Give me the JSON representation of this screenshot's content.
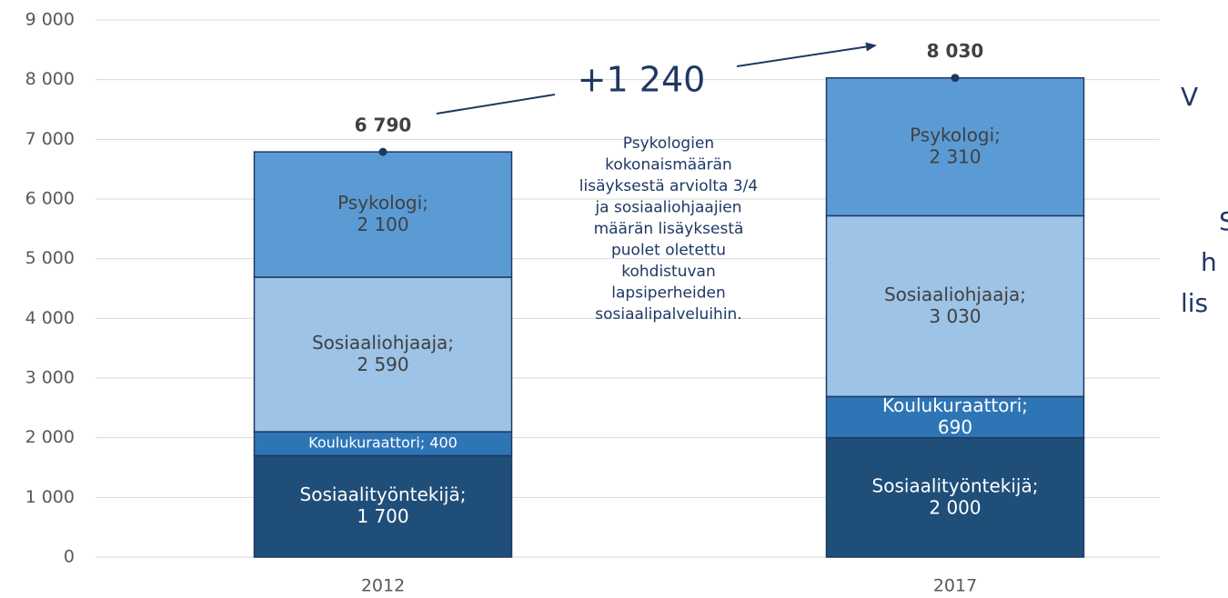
{
  "chart_data": {
    "type": "stacked_bar",
    "categories": [
      "2012",
      "2017"
    ],
    "series": [
      {
        "name": "Sosiaalityöntekijä",
        "color": "#1f4e79",
        "label_color": "#ffffff",
        "values": [
          1700,
          2000
        ],
        "value_labels": [
          "Sosiaalityöntekijä; 1 700",
          "Sosiaalityöntekijä; 2 000"
        ]
      },
      {
        "name": "Koulukuraattori",
        "color": "#2e75b6",
        "label_color": "#ffffff",
        "values": [
          400,
          690
        ],
        "value_labels": [
          "Koulukuraattori; 400",
          "Koulukuraattori; 690"
        ]
      },
      {
        "name": "Sosiaaliohjaaja",
        "color": "#9dc3e6",
        "label_color": "#404040",
        "values": [
          2590,
          3030
        ],
        "value_labels": [
          "Sosiaaliohjaaja; 2 590",
          "Sosiaaliohjaaja; 3 030"
        ]
      },
      {
        "name": "Psykologi",
        "color": "#5b9bd5",
        "label_color": "#404040",
        "values": [
          2100,
          2310
        ],
        "value_labels": [
          "Psykologi; 2 100",
          "Psykologi; 2 310"
        ]
      }
    ],
    "totals": [
      6790,
      8030
    ],
    "total_labels": [
      "6 790",
      "8 030"
    ],
    "difference_label": "+1 240",
    "annotation_lines": [
      "Psykologien",
      "kokonaismäärän",
      "lisäyksestä arviolta 3/4",
      "ja sosiaaliohjaajien",
      "määrän lisäyksestä",
      "puolet oletettu",
      "kohdistuvan",
      "lapsiperheiden",
      "sosiaalipalveluihin."
    ],
    "side_text": [
      "V",
      "S",
      "h",
      "lis"
    ],
    "ylim": [
      0,
      9000
    ],
    "yticks": [
      0,
      {
        "value": 1000,
        "label": "1 000"
      },
      {
        "value": 2000,
        "label": "2 000"
      },
      {
        "value": 3000,
        "label": "3 000"
      },
      {
        "value": 4000,
        "label": "4 000"
      },
      {
        "value": 5000,
        "label": "5 000"
      },
      {
        "value": 6000,
        "label": "6 000"
      },
      {
        "value": 7000,
        "label": "7 000"
      },
      {
        "value": 8000,
        "label": "8 000"
      },
      {
        "value": 9000,
        "label": "9 000"
      }
    ],
    "grid": true
  }
}
